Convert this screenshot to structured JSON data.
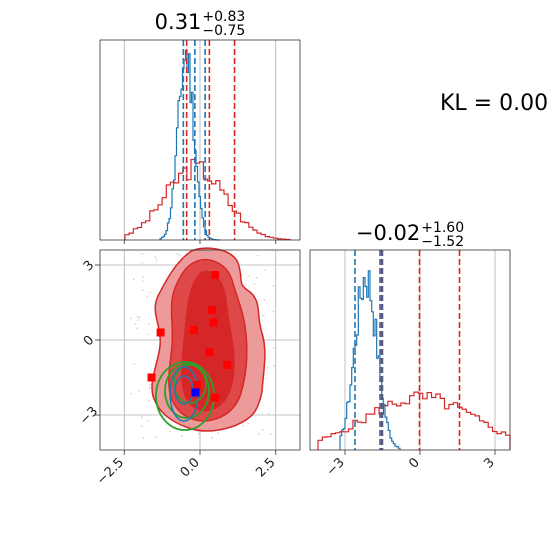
{
  "chart_data": {
    "type": "corner",
    "annotation": "KL = 0.00",
    "colors": {
      "blue": "#1f77b4",
      "red": "#d62728",
      "green": "#2ca02c",
      "marker_red": "#ff0000",
      "marker_blue": "#0000ff"
    },
    "grid": true,
    "params": [
      {
        "title_value": "0.31",
        "title_plus": "+0.83",
        "title_minus": "−0.75",
        "range": [
          -3.3,
          3.3
        ],
        "ticks": [
          -2.5,
          0.0,
          2.5
        ],
        "tick_labels": [
          "−2.5",
          "0.0",
          "2.5"
        ],
        "red_quantiles": [
          -0.44,
          0.31,
          1.14
        ],
        "blue_quantiles": [
          -0.55,
          -0.17,
          0.17
        ]
      },
      {
        "title_value": "−0.02",
        "title_plus": "+1.60",
        "title_minus": "−1.52",
        "range": [
          -4.4,
          3.6
        ],
        "ticks": [
          -3,
          0,
          3
        ],
        "tick_labels": [
          "−3",
          "0",
          "3"
        ],
        "red_quantiles": [
          -1.54,
          -0.02,
          1.58
        ],
        "blue_quantiles": [
          -2.6,
          -1.6,
          -1.5
        ]
      }
    ],
    "scatter_red": [
      [
        0.5,
        2.6
      ],
      [
        0.4,
        1.2
      ],
      [
        0.45,
        0.7
      ],
      [
        -1.3,
        0.3
      ],
      [
        -0.2,
        0.4
      ],
      [
        0.3,
        -0.5
      ],
      [
        0.9,
        -1.0
      ],
      [
        -1.6,
        -1.5
      ],
      [
        -0.1,
        -1.8
      ],
      [
        0.5,
        -2.3
      ]
    ],
    "scatter_blue": [
      [
        -0.15,
        -2.1
      ]
    ]
  }
}
